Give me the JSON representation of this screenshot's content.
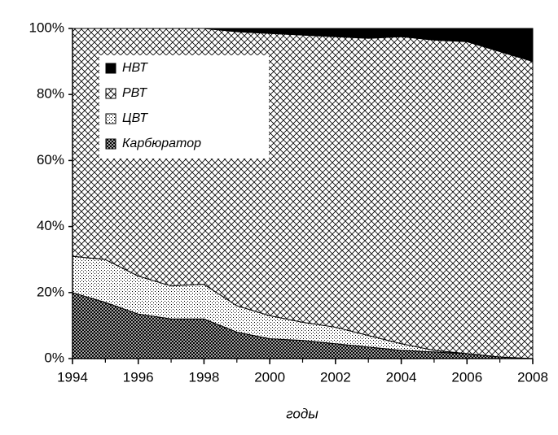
{
  "chart_data": {
    "type": "stacked_area",
    "xlabel": "годы",
    "x": [
      1994,
      1995,
      1996,
      1997,
      1998,
      1999,
      2000,
      2001,
      2002,
      2003,
      2004,
      2005,
      2006,
      2007,
      2008
    ],
    "series": [
      {
        "name": "Карбюратор",
        "values": [
          20,
          17,
          13.5,
          12,
          12,
          8,
          6,
          5.5,
          4.5,
          3.5,
          2.5,
          2,
          1.5,
          0.5,
          0
        ]
      },
      {
        "name": "ЦВТ",
        "values": [
          11,
          13,
          11.5,
          10,
          10.5,
          8,
          7,
          5.5,
          5,
          3.5,
          2,
          0.5,
          0,
          0,
          0
        ]
      },
      {
        "name": "РВТ",
        "values": [
          69,
          70,
          75,
          78,
          77.5,
          83,
          85.5,
          87,
          88,
          90,
          93,
          94,
          94.5,
          92.5,
          90
        ]
      },
      {
        "name": "НВТ",
        "values": [
          0,
          0,
          0,
          0,
          0,
          1,
          1.5,
          2,
          2.5,
          3,
          2.5,
          3.5,
          4,
          7,
          10
        ]
      }
    ],
    "xlim": [
      1994,
      2008
    ],
    "xticks": [
      1994,
      1996,
      1998,
      2000,
      2002,
      2004,
      2006,
      2008
    ],
    "ylim": [
      0,
      100
    ],
    "yticks": [
      {
        "value": 0,
        "label": "0%"
      },
      {
        "value": 20,
        "label": "20%"
      },
      {
        "value": 40,
        "label": "40%"
      },
      {
        "value": 60,
        "label": "60%"
      },
      {
        "value": 80,
        "label": "80%"
      },
      {
        "value": 100,
        "label": "100%"
      }
    ]
  }
}
